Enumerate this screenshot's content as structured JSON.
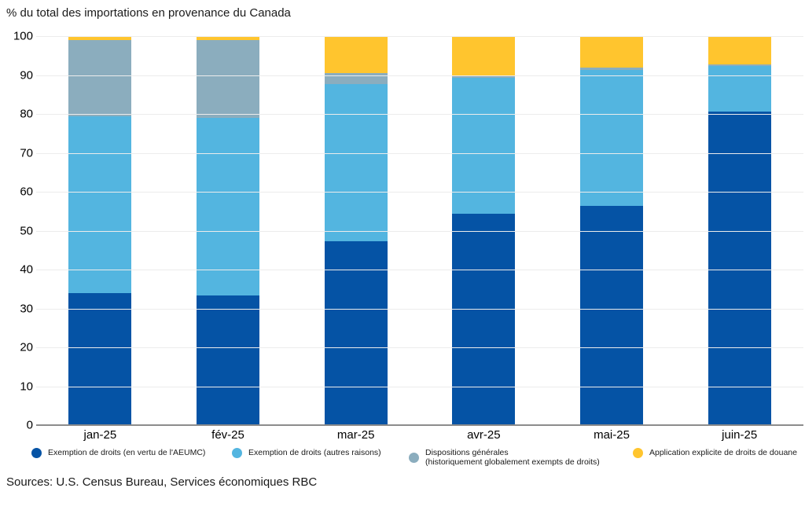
{
  "title": "% du total des importations en provenance du Canada",
  "sources": "Sources: U.S. Census Bureau, Services économiques RBC",
  "legend": {
    "items": [
      {
        "label": "Exemption de droits (en vertu de l'AEUMC)",
        "label2": "",
        "color": "#0553a5"
      },
      {
        "label": "Exemption de droits (autres raisons)",
        "label2": "",
        "color": "#53b5e0"
      },
      {
        "label": "Dispositions générales",
        "label2": "(historiquement globalement exempts de droits)",
        "color": "#8badbe"
      },
      {
        "label": "Application explicite de droits de douane",
        "label2": "",
        "color": "#ffc52e"
      }
    ]
  },
  "chart_data": {
    "type": "bar",
    "stacked": true,
    "title": "% du total des importations en provenance du Canada",
    "categories": [
      "jan-25",
      "fév-25",
      "mar-25",
      "avr-25",
      "mai-25",
      "juin-25"
    ],
    "series": [
      {
        "name": "Exemption de droits (en vertu de l'AEUMC)",
        "color": "#0553a5",
        "values": [
          34.0,
          33.4,
          47.3,
          54.3,
          56.4,
          80.7
        ]
      },
      {
        "name": "Exemption de droits (autres raisons)",
        "color": "#53b5e0",
        "values": [
          45.3,
          45.6,
          40.4,
          34.9,
          34.9,
          11.6
        ]
      },
      {
        "name": "Dispositions générales (historiquement globalement exempts de droits)",
        "color": "#8badbe",
        "values": [
          19.7,
          20.0,
          2.9,
          0.6,
          0.7,
          0.5
        ]
      },
      {
        "name": "Application explicite de droits de douane",
        "color": "#ffc52e",
        "values": [
          1.0,
          1.0,
          9.4,
          10.2,
          8.0,
          7.2
        ]
      }
    ],
    "ylabel": "% du total des importations en provenance du Canada",
    "xlabel": "",
    "ylim": [
      0,
      100
    ],
    "yticks": [
      0,
      10,
      20,
      30,
      40,
      50,
      60,
      70,
      80,
      90,
      100
    ],
    "grid": true,
    "legend_position": "bottom"
  }
}
